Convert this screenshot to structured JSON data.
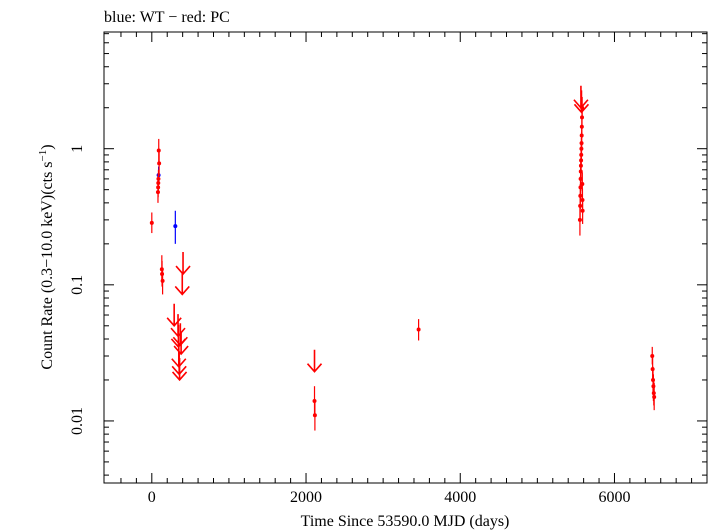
{
  "chart_data": {
    "type": "scatter",
    "title": "blue: WT − red: PC",
    "xlabel": "Time Since 53590.0 MJD (days)",
    "ylabel_main": "Count Rate (0.3−10.0 keV)(cts s",
    "ylabel_sup": "−1",
    "ylabel_end": ")",
    "xlim": [
      -620,
      7200
    ],
    "ylim": [
      0.0035,
      7.2
    ],
    "y_scale": "log",
    "grid": false,
    "x_ticks": [
      0,
      2000,
      4000,
      6000
    ],
    "x_tick_labels": [
      "0",
      "2000",
      "4000",
      "6000"
    ],
    "y_ticks": [
      0.01,
      0.1,
      1
    ],
    "y_tick_labels": [
      "0.01",
      "0.1",
      "1"
    ],
    "colors": {
      "WT": "#0000ff",
      "PC": "#ff0000",
      "axes": "#000000"
    },
    "series": [
      {
        "name": "WT",
        "color": "#0000ff",
        "points": [
          {
            "x": 88,
            "y": 0.64,
            "ylo": 0.55,
            "yhi": 0.74
          },
          {
            "x": 305,
            "y": 0.27,
            "ylo": 0.2,
            "yhi": 0.35
          }
        ]
      },
      {
        "name": "PC",
        "color": "#ff0000",
        "points": [
          {
            "x": 0,
            "y": 0.285,
            "ylo": 0.24,
            "yhi": 0.34
          },
          {
            "x": 80,
            "y": 0.48,
            "ylo": 0.4,
            "yhi": 0.58
          },
          {
            "x": 82,
            "y": 0.52,
            "ylo": 0.44,
            "yhi": 0.62
          },
          {
            "x": 84,
            "y": 0.56,
            "ylo": 0.47,
            "yhi": 0.66
          },
          {
            "x": 86,
            "y": 0.6,
            "ylo": 0.5,
            "yhi": 0.7
          },
          {
            "x": 90,
            "y": 0.97,
            "ylo": 0.8,
            "yhi": 1.18
          },
          {
            "x": 95,
            "y": 0.78,
            "ylo": 0.63,
            "yhi": 0.95
          },
          {
            "x": 130,
            "y": 0.13,
            "ylo": 0.105,
            "yhi": 0.165
          },
          {
            "x": 133,
            "y": 0.12,
            "ylo": 0.097,
            "yhi": 0.15
          },
          {
            "x": 140,
            "y": 0.107,
            "ylo": 0.085,
            "yhi": 0.13
          },
          {
            "x": 3460,
            "y": 0.047,
            "ylo": 0.039,
            "yhi": 0.056
          },
          {
            "x": 2110,
            "y": 0.014,
            "ylo": 0.011,
            "yhi": 0.018
          },
          {
            "x": 2115,
            "y": 0.011,
            "ylo": 0.0085,
            "yhi": 0.014
          },
          {
            "x": 5552,
            "y": 0.3,
            "ylo": 0.23,
            "yhi": 0.38
          },
          {
            "x": 5555,
            "y": 0.38,
            "ylo": 0.3,
            "yhi": 0.47
          },
          {
            "x": 5557,
            "y": 0.45,
            "ylo": 0.36,
            "yhi": 0.55
          },
          {
            "x": 5559,
            "y": 0.52,
            "ylo": 0.42,
            "yhi": 0.63
          },
          {
            "x": 5561,
            "y": 0.6,
            "ylo": 0.49,
            "yhi": 0.72
          },
          {
            "x": 5563,
            "y": 0.68,
            "ylo": 0.56,
            "yhi": 0.82
          },
          {
            "x": 5565,
            "y": 0.75,
            "ylo": 0.62,
            "yhi": 0.9
          },
          {
            "x": 5567,
            "y": 0.82,
            "ylo": 0.68,
            "yhi": 0.98
          },
          {
            "x": 5569,
            "y": 0.9,
            "ylo": 0.75,
            "yhi": 1.08
          },
          {
            "x": 5571,
            "y": 1.0,
            "ylo": 0.83,
            "yhi": 1.2
          },
          {
            "x": 5573,
            "y": 1.1,
            "ylo": 0.92,
            "yhi": 1.32
          },
          {
            "x": 5575,
            "y": 1.25,
            "ylo": 1.03,
            "yhi": 1.5
          },
          {
            "x": 5577,
            "y": 1.45,
            "ylo": 1.2,
            "yhi": 1.75
          },
          {
            "x": 5579,
            "y": 1.7,
            "ylo": 1.4,
            "yhi": 2.05
          },
          {
            "x": 5581,
            "y": 2.0,
            "ylo": 1.65,
            "yhi": 2.4
          },
          {
            "x": 5583,
            "y": 0.55,
            "ylo": 0.45,
            "yhi": 0.67
          },
          {
            "x": 5585,
            "y": 0.42,
            "ylo": 0.34,
            "yhi": 0.51
          },
          {
            "x": 5587,
            "y": 0.35,
            "ylo": 0.28,
            "yhi": 0.43
          },
          {
            "x": 6490,
            "y": 0.03,
            "ylo": 0.026,
            "yhi": 0.035
          },
          {
            "x": 6495,
            "y": 0.024,
            "ylo": 0.02,
            "yhi": 0.029
          },
          {
            "x": 6500,
            "y": 0.02,
            "ylo": 0.016,
            "yhi": 0.025
          },
          {
            "x": 6505,
            "y": 0.018,
            "ylo": 0.014,
            "yhi": 0.022
          },
          {
            "x": 6510,
            "y": 0.016,
            "ylo": 0.013,
            "yhi": 0.02
          },
          {
            "x": 6515,
            "y": 0.015,
            "ylo": 0.012,
            "yhi": 0.019
          }
        ],
        "upper_limits": [
          {
            "x": 290,
            "y": 0.05
          },
          {
            "x": 340,
            "y": 0.042
          },
          {
            "x": 345,
            "y": 0.035
          },
          {
            "x": 350,
            "y": 0.025
          },
          {
            "x": 355,
            "y": 0.022
          },
          {
            "x": 360,
            "y": 0.02
          },
          {
            "x": 370,
            "y": 0.036
          },
          {
            "x": 380,
            "y": 0.031
          },
          {
            "x": 395,
            "y": 0.085
          },
          {
            "x": 405,
            "y": 0.12
          },
          {
            "x": 2110,
            "y": 0.023
          },
          {
            "x": 5565,
            "y": 2.0
          },
          {
            "x": 5572,
            "y": 1.85
          }
        ]
      }
    ]
  }
}
